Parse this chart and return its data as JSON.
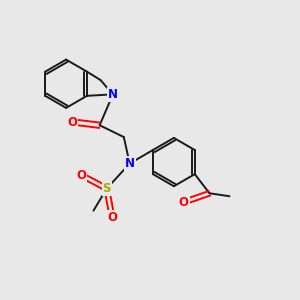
{
  "background_color": "#e8e8e8",
  "bond_color": "#1a1a1a",
  "nitrogen_color": "#0000ff",
  "oxygen_color": "#ff0000",
  "sulfur_color": "#aaaa00",
  "font_size_atom": 8.5,
  "figsize": [
    3.0,
    3.0
  ],
  "dpi": 100,
  "xlim": [
    0,
    10
  ],
  "ylim": [
    0,
    10
  ]
}
